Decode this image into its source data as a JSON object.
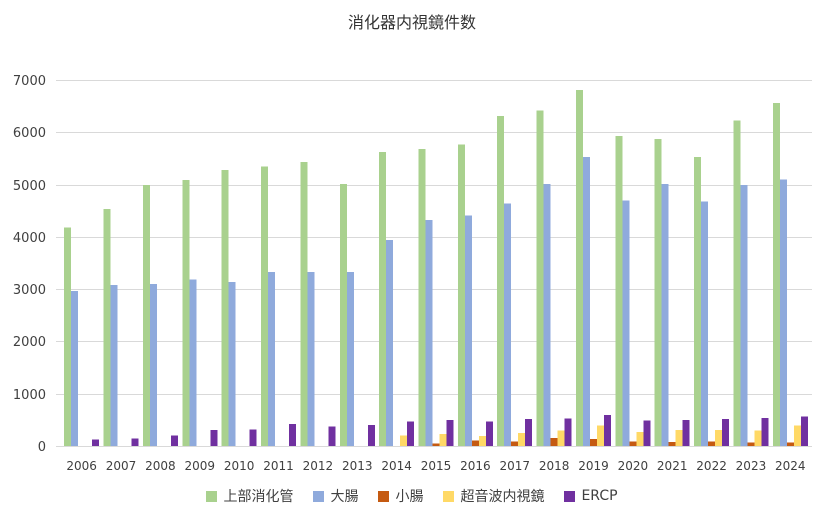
{
  "chart_data": {
    "type": "bar",
    "title": "消化器内視鏡件数",
    "xlabel": "",
    "ylabel": "",
    "categories": [
      "2006",
      "2007",
      "2008",
      "2009",
      "2010",
      "2011",
      "2012",
      "2013",
      "2014",
      "2015",
      "2016",
      "2017",
      "2018",
      "2019",
      "2020",
      "2021",
      "2022",
      "2023",
      "2024"
    ],
    "ylim": [
      0,
      7000
    ],
    "yticks": [
      0,
      1000,
      2000,
      3000,
      4000,
      5000,
      6000,
      7000
    ],
    "grid": true,
    "legend": "bottom",
    "series": [
      {
        "name": "上部消化管",
        "color": "#A9D18E",
        "values": [
          4180,
          4530,
          4990,
          5090,
          5280,
          5350,
          5430,
          5010,
          5620,
          5680,
          5770,
          6310,
          6420,
          6810,
          5930,
          5870,
          5530,
          6230,
          6560
        ]
      },
      {
        "name": "大腸",
        "color": "#8FAADC",
        "values": [
          2960,
          3080,
          3100,
          3180,
          3140,
          3330,
          3330,
          3330,
          3940,
          4320,
          4410,
          4640,
          5010,
          5530,
          4700,
          5010,
          4680,
          4990,
          5100
        ]
      },
      {
        "name": "小腸",
        "color": "#C55A11",
        "values": [
          null,
          null,
          null,
          null,
          null,
          null,
          null,
          null,
          null,
          50,
          110,
          90,
          150,
          130,
          90,
          80,
          90,
          70,
          70
        ]
      },
      {
        "name": "超音波内視鏡",
        "color": "#FFD966",
        "values": [
          null,
          null,
          null,
          null,
          null,
          null,
          null,
          null,
          200,
          230,
          190,
          250,
          300,
          390,
          270,
          310,
          310,
          300,
          390
        ]
      },
      {
        "name": "ERCP",
        "color": "#7030A0",
        "values": [
          120,
          140,
          200,
          310,
          320,
          420,
          370,
          400,
          470,
          500,
          470,
          520,
          530,
          590,
          490,
          500,
          520,
          540,
          560
        ]
      }
    ]
  }
}
